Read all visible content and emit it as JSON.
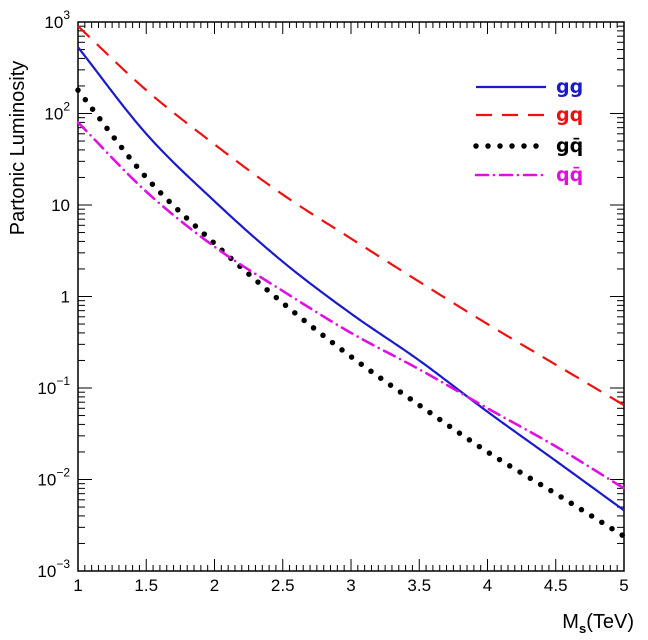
{
  "chart_data": {
    "type": "line",
    "title": "",
    "xlabel": "M",
    "xlabel_sub": "s",
    "xlabel_unit": "(TeV)",
    "ylabel": "Partonic Luminosity",
    "xlim": [
      1,
      5
    ],
    "ylim": [
      0.001,
      1000
    ],
    "yscale": "log",
    "grid": false,
    "legend_position": "top-right",
    "x_ticks": [
      {
        "value": 1,
        "label": "1"
      },
      {
        "value": 1.5,
        "label": "1.5"
      },
      {
        "value": 2,
        "label": "2"
      },
      {
        "value": 2.5,
        "label": "2.5"
      },
      {
        "value": 3,
        "label": "3"
      },
      {
        "value": 3.5,
        "label": "3.5"
      },
      {
        "value": 4,
        "label": "4"
      },
      {
        "value": 4.5,
        "label": "4.5"
      },
      {
        "value": 5,
        "label": "5"
      }
    ],
    "y_ticks": [
      {
        "value": 1000,
        "base": "10",
        "exp": "3"
      },
      {
        "value": 100,
        "base": "10",
        "exp": "2"
      },
      {
        "value": 10,
        "base": "10",
        "exp": ""
      },
      {
        "value": 1,
        "base": "1",
        "exp": ""
      },
      {
        "value": 0.1,
        "base": "10",
        "exp": "−1"
      },
      {
        "value": 0.01,
        "base": "10",
        "exp": "−2"
      },
      {
        "value": 0.001,
        "base": "10",
        "exp": "−3"
      }
    ],
    "series": [
      {
        "name": "gg",
        "color": "#1a1acc",
        "style": "solid",
        "x": [
          1,
          1.5,
          2,
          2.5,
          3,
          3.5,
          4,
          4.5,
          5
        ],
        "y": [
          530,
          60,
          11,
          2.4,
          0.65,
          0.2,
          0.055,
          0.016,
          0.0046
        ]
      },
      {
        "name": "gq",
        "color": "#ee1111",
        "style": "dashed",
        "x": [
          1,
          1.5,
          2,
          2.5,
          3,
          3.5,
          4,
          4.5,
          5
        ],
        "y": [
          900,
          180,
          46,
          13,
          4.3,
          1.45,
          0.5,
          0.18,
          0.065
        ]
      },
      {
        "name": "gq̄",
        "color": "#000000",
        "style": "dotted",
        "x": [
          1,
          1.5,
          2,
          2.5,
          3,
          3.5,
          4,
          4.5,
          5
        ],
        "y": [
          180,
          20,
          3.8,
          0.85,
          0.22,
          0.065,
          0.02,
          0.007,
          0.0024
        ]
      },
      {
        "name": "qq̄",
        "color": "#e011e0",
        "style": "dashdot",
        "x": [
          1,
          1.5,
          2,
          2.5,
          3,
          3.5,
          4,
          4.5,
          5
        ],
        "y": [
          80,
          14,
          3.5,
          1.15,
          0.4,
          0.16,
          0.06,
          0.023,
          0.008
        ]
      }
    ]
  }
}
